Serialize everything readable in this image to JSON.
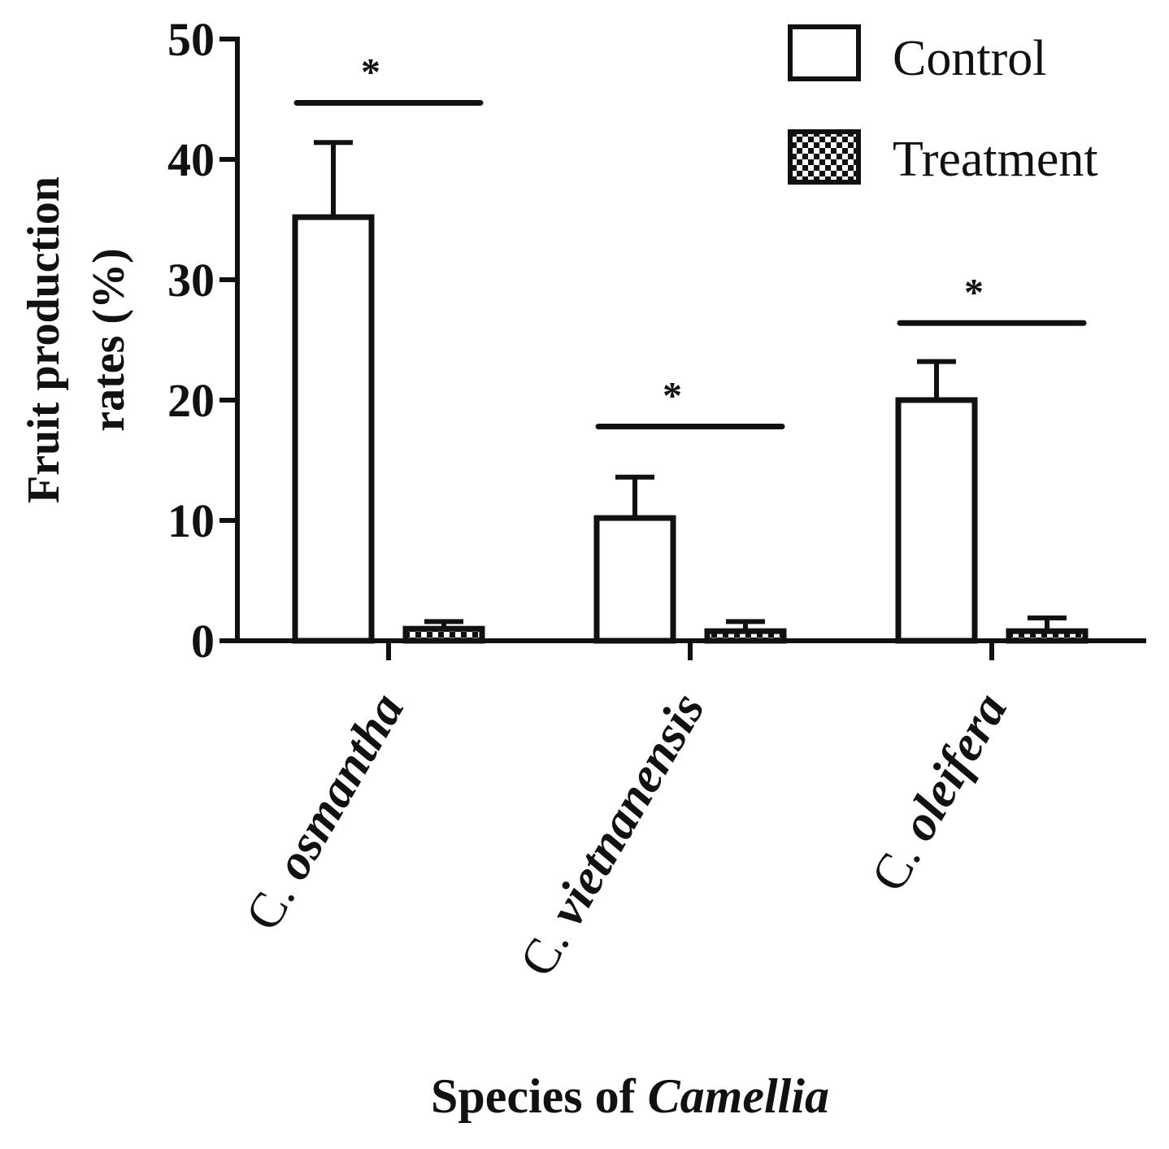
{
  "chart_data": {
    "type": "bar",
    "title": "",
    "ylabel_line1": "Fruit production",
    "ylabel_line2": "rates (%)",
    "xlabel_prefix": "Species of ",
    "xlabel_emphasis": "Camellia",
    "ylim": [
      0,
      50
    ],
    "yticks": [
      "0",
      "10",
      "20",
      "30",
      "40",
      "50"
    ],
    "categories": [
      {
        "prefix": "C. ",
        "species": "osmantha"
      },
      {
        "prefix": "C. ",
        "species": "vietnanensis"
      },
      {
        "prefix": "C. ",
        "species": "oleifera"
      }
    ],
    "series": [
      {
        "name": "Control",
        "values": [
          35.2,
          10.2,
          20.0
        ],
        "errors": [
          6.2,
          3.4,
          3.2
        ],
        "pattern": "open"
      },
      {
        "name": "Treatment",
        "values": [
          1.0,
          0.8,
          0.8
        ],
        "errors": [
          0.6,
          0.8,
          1.1
        ],
        "pattern": "checkered"
      }
    ],
    "significance": [
      {
        "category_index": 0,
        "label": "*",
        "y": 44.7
      },
      {
        "category_index": 1,
        "label": "*",
        "y": 17.8
      },
      {
        "category_index": 2,
        "label": "*",
        "y": 26.4
      }
    ],
    "legend": {
      "placement": "top-right",
      "entries": [
        "Control",
        "Treatment"
      ]
    },
    "grid": false
  }
}
